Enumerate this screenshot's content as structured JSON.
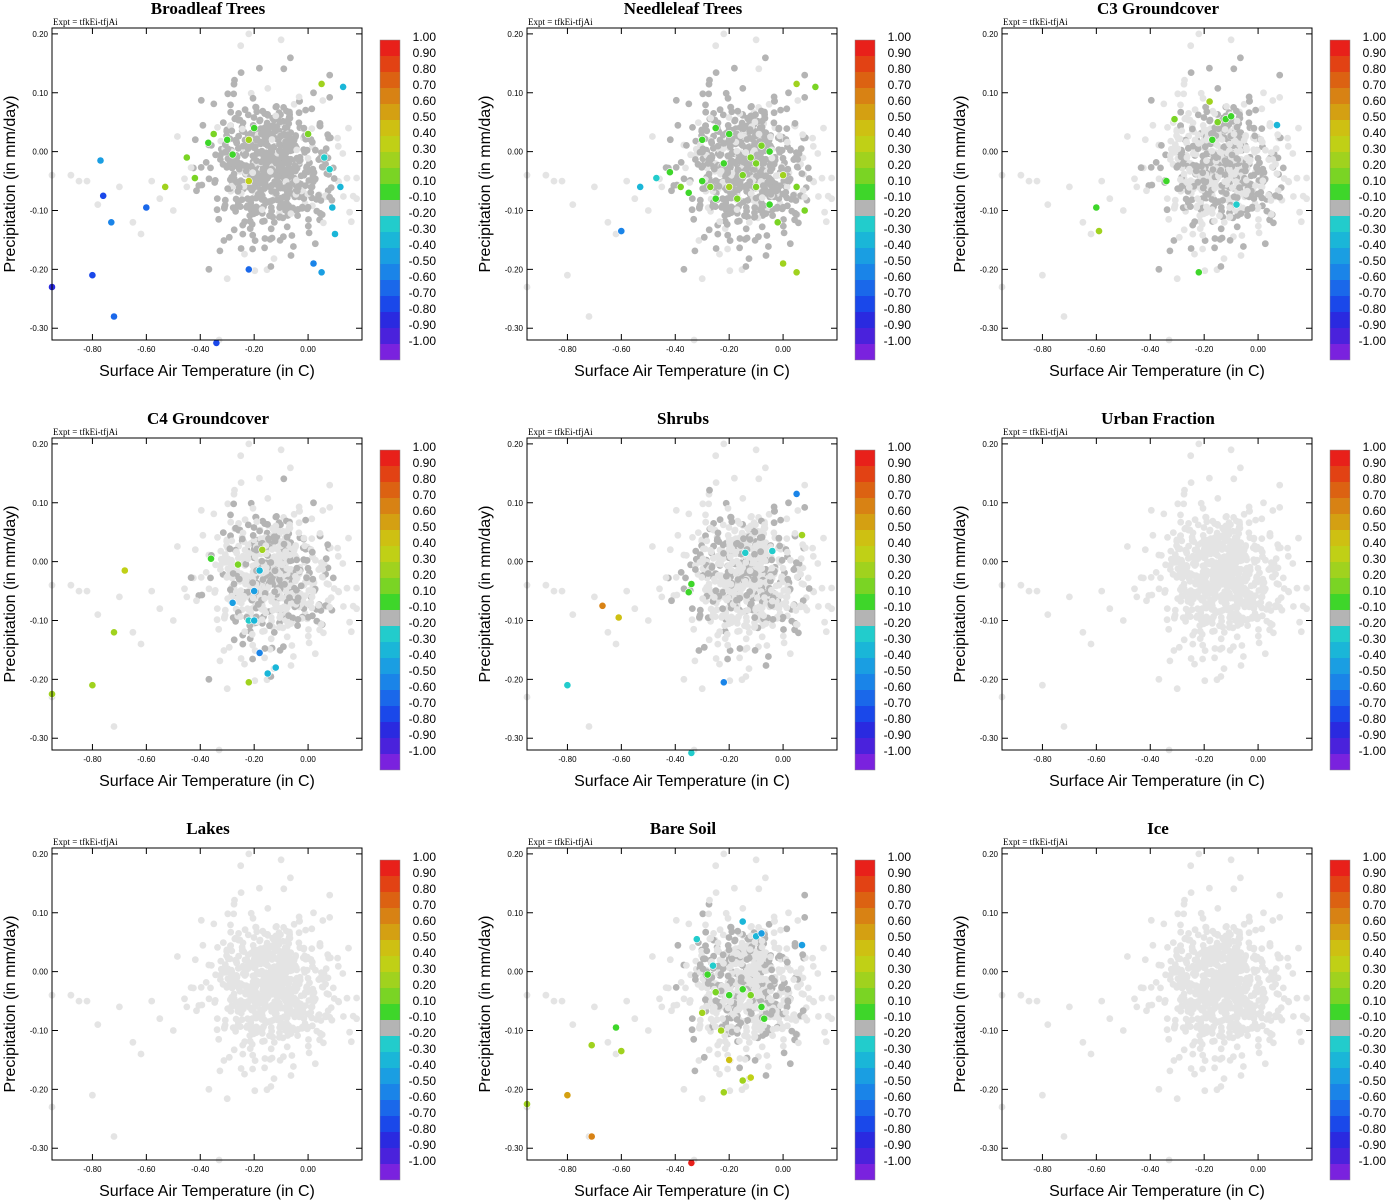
{
  "figure": {
    "expt_label": "Expt = tfkEi-tfjAi",
    "xlabel": "Surface Air Temperature (in C)",
    "ylabel": "Precipitation (in mm/day)"
  },
  "colorbar": {
    "levels": [
      "1.00",
      "0.90",
      "0.80",
      "0.70",
      "0.60",
      "0.50",
      "0.40",
      "0.30",
      "0.20",
      "0.10",
      "-0.10",
      "-0.20",
      "-0.30",
      "-0.40",
      "-0.50",
      "-0.60",
      "-0.70",
      "-0.80",
      "-0.90",
      "-1.00"
    ],
    "colors": [
      "#e8201a",
      "#e24214",
      "#dc6212",
      "#d88214",
      "#d4a012",
      "#cec012",
      "#c0d016",
      "#a0d21e",
      "#7ad424",
      "#3ed62a",
      "#b4b4b4",
      "#22cccc",
      "#1ab6d8",
      "#1a9ee2",
      "#1a84e8",
      "#1a68ea",
      "#1a48ea",
      "#2a2ae0",
      "#4a22dc",
      "#7a22de"
    ]
  },
  "cloud_color": "#e4e4e4",
  "chart_data": [
    {
      "type": "scatter",
      "title": "Broadleaf Trees",
      "xlim": [
        -0.95,
        0.2
      ],
      "ylim": [
        -0.32,
        0.21
      ],
      "xticks": [
        "-0.80",
        "-0.60",
        "-0.40",
        "-0.20",
        "0.00"
      ],
      "xtick_values": [
        -0.8,
        -0.6,
        -0.4,
        -0.2,
        0
      ],
      "yticks": [
        "0.20",
        "0.10",
        "0.00",
        "-0.10",
        "-0.20",
        "-0.30"
      ],
      "ytick_values": [
        0.2,
        0.1,
        0,
        -0.1,
        -0.2,
        -0.3
      ],
      "grey_fraction": 0.9,
      "colored_points": [
        {
          "x": -0.95,
          "y": -0.23,
          "v": -0.8
        },
        {
          "x": -0.8,
          "y": -0.21,
          "v": -0.7
        },
        {
          "x": -0.72,
          "y": -0.28,
          "v": -0.6
        },
        {
          "x": -0.76,
          "y": -0.075,
          "v": -0.7
        },
        {
          "x": -0.73,
          "y": -0.12,
          "v": -0.5
        },
        {
          "x": -0.6,
          "y": -0.095,
          "v": -0.6
        },
        {
          "x": -0.34,
          "y": -0.325,
          "v": -0.7
        },
        {
          "x": -0.77,
          "y": -0.015,
          "v": -0.4
        },
        {
          "x": -0.53,
          "y": -0.06,
          "v": 0.3
        },
        {
          "x": -0.45,
          "y": -0.01,
          "v": 0.2
        },
        {
          "x": -0.42,
          "y": -0.045,
          "v": 0.2
        },
        {
          "x": -0.3,
          "y": 0.02,
          "v": 0.1
        },
        {
          "x": -0.28,
          "y": -0.005,
          "v": 0.1
        },
        {
          "x": -0.22,
          "y": 0.02,
          "v": 0.3
        },
        {
          "x": -0.2,
          "y": 0.04,
          "v": 0.1
        },
        {
          "x": 0.05,
          "y": 0.115,
          "v": 0.3
        },
        {
          "x": 0.13,
          "y": 0.11,
          "v": -0.3
        },
        {
          "x": 0.0,
          "y": 0.03,
          "v": 0.2
        },
        {
          "x": 0.08,
          "y": -0.03,
          "v": -0.2
        },
        {
          "x": 0.12,
          "y": -0.06,
          "v": -0.3
        },
        {
          "x": 0.1,
          "y": -0.14,
          "v": -0.3
        },
        {
          "x": 0.05,
          "y": -0.205,
          "v": -0.4
        },
        {
          "x": 0.02,
          "y": -0.19,
          "v": -0.5
        },
        {
          "x": -0.22,
          "y": -0.2,
          "v": -0.6
        },
        {
          "x": 0.09,
          "y": -0.095,
          "v": -0.3
        },
        {
          "x": -0.35,
          "y": 0.03,
          "v": 0.2
        },
        {
          "x": -0.37,
          "y": 0.015,
          "v": 0.1
        },
        {
          "x": 0.06,
          "y": -0.01,
          "v": -0.2
        },
        {
          "x": -0.22,
          "y": -0.05,
          "v": 0.4
        }
      ]
    },
    {
      "type": "scatter",
      "title": "Needleleaf Trees",
      "xlim": [
        -0.95,
        0.2
      ],
      "ylim": [
        -0.32,
        0.21
      ],
      "xticks": [
        "-0.80",
        "-0.60",
        "-0.40",
        "-0.20",
        "0.00"
      ],
      "xtick_values": [
        -0.8,
        -0.6,
        -0.4,
        -0.2,
        0
      ],
      "yticks": [
        "0.20",
        "0.10",
        "0.00",
        "-0.10",
        "-0.20",
        "-0.30"
      ],
      "ytick_values": [
        0.2,
        0.1,
        0,
        -0.1,
        -0.2,
        -0.3
      ],
      "grey_fraction": 0.8,
      "colored_points": [
        {
          "x": -0.6,
          "y": -0.135,
          "v": -0.5
        },
        {
          "x": -0.53,
          "y": -0.06,
          "v": -0.3
        },
        {
          "x": -0.47,
          "y": -0.045,
          "v": -0.2
        },
        {
          "x": -0.42,
          "y": -0.035,
          "v": 0.1
        },
        {
          "x": -0.38,
          "y": -0.06,
          "v": 0.2
        },
        {
          "x": -0.3,
          "y": -0.05,
          "v": 0.1
        },
        {
          "x": -0.27,
          "y": -0.06,
          "v": 0.2
        },
        {
          "x": -0.25,
          "y": -0.08,
          "v": 0.1
        },
        {
          "x": -0.2,
          "y": -0.06,
          "v": 0.3
        },
        {
          "x": -0.15,
          "y": -0.04,
          "v": 0.2
        },
        {
          "x": -0.1,
          "y": -0.02,
          "v": 0.2
        },
        {
          "x": -0.05,
          "y": 0.0,
          "v": 0.1
        },
        {
          "x": 0.0,
          "y": -0.04,
          "v": 0.3
        },
        {
          "x": 0.05,
          "y": -0.06,
          "v": 0.2
        },
        {
          "x": -0.02,
          "y": -0.12,
          "v": 0.2
        },
        {
          "x": 0.05,
          "y": -0.205,
          "v": 0.3
        },
        {
          "x": 0.0,
          "y": -0.19,
          "v": 0.3
        },
        {
          "x": 0.12,
          "y": 0.11,
          "v": 0.2
        },
        {
          "x": 0.05,
          "y": 0.115,
          "v": 0.3
        },
        {
          "x": -0.25,
          "y": 0.04,
          "v": 0.1
        },
        {
          "x": -0.2,
          "y": 0.03,
          "v": 0.1
        },
        {
          "x": -0.17,
          "y": -0.08,
          "v": 0.2
        },
        {
          "x": -0.12,
          "y": -0.01,
          "v": 0.2
        },
        {
          "x": -0.08,
          "y": 0.01,
          "v": 0.2
        },
        {
          "x": -0.3,
          "y": 0.02,
          "v": 0.1
        },
        {
          "x": -0.22,
          "y": -0.02,
          "v": 0.1
        },
        {
          "x": -0.35,
          "y": -0.07,
          "v": 0.1
        },
        {
          "x": -0.1,
          "y": -0.06,
          "v": 0.2
        },
        {
          "x": 0.08,
          "y": -0.1,
          "v": 0.2
        },
        {
          "x": -0.05,
          "y": -0.09,
          "v": 0.1
        }
      ]
    },
    {
      "type": "scatter",
      "title": "C3 Groundcover",
      "xlim": [
        -0.95,
        0.2
      ],
      "ylim": [
        -0.32,
        0.21
      ],
      "xticks": [
        "-0.80",
        "-0.60",
        "-0.40",
        "-0.20",
        "0.00"
      ],
      "xtick_values": [
        -0.8,
        -0.6,
        -0.4,
        -0.2,
        0
      ],
      "yticks": [
        "0.20",
        "0.10",
        "0.00",
        "-0.10",
        "-0.20",
        "-0.30"
      ],
      "ytick_values": [
        0.2,
        0.1,
        0,
        -0.1,
        -0.2,
        -0.3
      ],
      "grey_fraction": 0.5,
      "colored_points": [
        {
          "x": -0.6,
          "y": -0.095,
          "v": 0.1
        },
        {
          "x": -0.59,
          "y": -0.135,
          "v": 0.3
        },
        {
          "x": -0.34,
          "y": -0.05,
          "v": 0.1
        },
        {
          "x": -0.31,
          "y": 0.055,
          "v": 0.2
        },
        {
          "x": -0.22,
          "y": -0.205,
          "v": 0.1
        },
        {
          "x": -0.18,
          "y": 0.085,
          "v": 0.3
        },
        {
          "x": -0.17,
          "y": 0.02,
          "v": 0.1
        },
        {
          "x": -0.15,
          "y": 0.05,
          "v": 0.2
        },
        {
          "x": -0.12,
          "y": 0.055,
          "v": 0.1
        },
        {
          "x": -0.1,
          "y": 0.06,
          "v": 0.1
        },
        {
          "x": 0.07,
          "y": 0.045,
          "v": -0.3
        },
        {
          "x": -0.08,
          "y": -0.09,
          "v": -0.2
        }
      ]
    },
    {
      "type": "scatter",
      "title": "C4 Groundcover",
      "xlim": [
        -0.95,
        0.2
      ],
      "ylim": [
        -0.32,
        0.21
      ],
      "xticks": [
        "-0.80",
        "-0.60",
        "-0.40",
        "-0.20",
        "0.00"
      ],
      "xtick_values": [
        -0.8,
        -0.6,
        -0.4,
        -0.2,
        0
      ],
      "yticks": [
        "0.20",
        "0.10",
        "0.00",
        "-0.10",
        "-0.20",
        "-0.30"
      ],
      "ytick_values": [
        0.2,
        0.1,
        0,
        -0.1,
        -0.2,
        -0.3
      ],
      "grey_fraction": 0.35,
      "colored_points": [
        {
          "x": -0.95,
          "y": -0.225,
          "v": 0.3
        },
        {
          "x": -0.8,
          "y": -0.21,
          "v": 0.3
        },
        {
          "x": -0.72,
          "y": -0.12,
          "v": 0.3
        },
        {
          "x": -0.68,
          "y": -0.015,
          "v": 0.4
        },
        {
          "x": -0.36,
          "y": 0.005,
          "v": 0.1
        },
        {
          "x": -0.28,
          "y": -0.07,
          "v": -0.4
        },
        {
          "x": -0.26,
          "y": -0.005,
          "v": 0.2
        },
        {
          "x": -0.22,
          "y": -0.1,
          "v": -0.2
        },
        {
          "x": -0.2,
          "y": -0.1,
          "v": -0.3
        },
        {
          "x": -0.18,
          "y": -0.015,
          "v": -0.3
        },
        {
          "x": -0.15,
          "y": -0.19,
          "v": -0.3
        },
        {
          "x": -0.12,
          "y": -0.18,
          "v": -0.3
        },
        {
          "x": -0.18,
          "y": -0.155,
          "v": -0.5
        },
        {
          "x": -0.22,
          "y": -0.205,
          "v": 0.3
        },
        {
          "x": -0.17,
          "y": 0.02,
          "v": 0.3
        },
        {
          "x": -0.2,
          "y": -0.05,
          "v": -0.4
        }
      ]
    },
    {
      "type": "scatter",
      "title": "Shrubs",
      "xlim": [
        -0.95,
        0.2
      ],
      "ylim": [
        -0.32,
        0.21
      ],
      "xticks": [
        "-0.80",
        "-0.60",
        "-0.40",
        "-0.20",
        "0.00"
      ],
      "xtick_values": [
        -0.8,
        -0.6,
        -0.4,
        -0.2,
        0
      ],
      "yticks": [
        "0.20",
        "0.10",
        "0.00",
        "-0.10",
        "-0.20",
        "-0.30"
      ],
      "ytick_values": [
        0.2,
        0.1,
        0,
        -0.1,
        -0.2,
        -0.3
      ],
      "grey_fraction": 0.3,
      "colored_points": [
        {
          "x": -0.8,
          "y": -0.21,
          "v": -0.2
        },
        {
          "x": -0.67,
          "y": -0.075,
          "v": 0.7
        },
        {
          "x": -0.61,
          "y": -0.095,
          "v": 0.5
        },
        {
          "x": -0.34,
          "y": -0.038,
          "v": 0.1
        },
        {
          "x": -0.35,
          "y": -0.052,
          "v": 0.1
        },
        {
          "x": -0.34,
          "y": -0.325,
          "v": -0.2
        },
        {
          "x": -0.22,
          "y": -0.205,
          "v": -0.5
        },
        {
          "x": -0.14,
          "y": 0.015,
          "v": -0.2
        },
        {
          "x": -0.04,
          "y": 0.018,
          "v": -0.2
        },
        {
          "x": 0.05,
          "y": 0.115,
          "v": -0.5
        },
        {
          "x": 0.07,
          "y": 0.045,
          "v": 0.3
        }
      ]
    },
    {
      "type": "scatter",
      "title": "Urban Fraction",
      "xlim": [
        -0.95,
        0.2
      ],
      "ylim": [
        -0.32,
        0.21
      ],
      "xticks": [
        "-0.80",
        "-0.60",
        "-0.40",
        "-0.20",
        "0.00"
      ],
      "xtick_values": [
        -0.8,
        -0.6,
        -0.4,
        -0.2,
        0
      ],
      "yticks": [
        "0.20",
        "0.10",
        "0.00",
        "-0.10",
        "-0.20",
        "-0.30"
      ],
      "ytick_values": [
        0.2,
        0.1,
        0,
        -0.1,
        -0.2,
        -0.3
      ],
      "grey_fraction": 0.0,
      "colored_points": []
    },
    {
      "type": "scatter",
      "title": "Lakes",
      "xlim": [
        -0.95,
        0.2
      ],
      "ylim": [
        -0.32,
        0.21
      ],
      "xticks": [
        "-0.80",
        "-0.60",
        "-0.40",
        "-0.20",
        "0.00"
      ],
      "xtick_values": [
        -0.8,
        -0.6,
        -0.4,
        -0.2,
        0
      ],
      "yticks": [
        "0.20",
        "0.10",
        "0.00",
        "-0.10",
        "-0.20",
        "-0.30"
      ],
      "ytick_values": [
        0.2,
        0.1,
        0,
        -0.1,
        -0.2,
        -0.3
      ],
      "grey_fraction": 0.0,
      "colored_points": []
    },
    {
      "type": "scatter",
      "title": "Bare Soil",
      "xlim": [
        -0.95,
        0.2
      ],
      "ylim": [
        -0.32,
        0.21
      ],
      "xticks": [
        "-0.80",
        "-0.60",
        "-0.40",
        "-0.20",
        "0.00"
      ],
      "xtick_values": [
        -0.8,
        -0.6,
        -0.4,
        -0.2,
        0
      ],
      "yticks": [
        "0.20",
        "0.10",
        "0.00",
        "-0.10",
        "-0.20",
        "-0.30"
      ],
      "ytick_values": [
        0.2,
        0.1,
        0,
        -0.1,
        -0.2,
        -0.3
      ],
      "grey_fraction": 0.3,
      "colored_points": [
        {
          "x": -0.95,
          "y": -0.225,
          "v": 0.3
        },
        {
          "x": -0.8,
          "y": -0.21,
          "v": 0.6
        },
        {
          "x": -0.71,
          "y": -0.28,
          "v": 0.7
        },
        {
          "x": -0.34,
          "y": -0.325,
          "v": 1.0
        },
        {
          "x": -0.71,
          "y": -0.125,
          "v": 0.3
        },
        {
          "x": -0.62,
          "y": -0.095,
          "v": 0.1
        },
        {
          "x": -0.6,
          "y": -0.135,
          "v": 0.3
        },
        {
          "x": -0.3,
          "y": -0.07,
          "v": 0.3
        },
        {
          "x": -0.25,
          "y": -0.035,
          "v": 0.2
        },
        {
          "x": -0.23,
          "y": -0.1,
          "v": 0.3
        },
        {
          "x": -0.2,
          "y": -0.15,
          "v": 0.5
        },
        {
          "x": -0.22,
          "y": -0.205,
          "v": 0.3
        },
        {
          "x": -0.15,
          "y": -0.185,
          "v": 0.3
        },
        {
          "x": -0.12,
          "y": -0.18,
          "v": 0.4
        },
        {
          "x": -0.2,
          "y": -0.04,
          "v": 0.1
        },
        {
          "x": -0.15,
          "y": -0.03,
          "v": 0.1
        },
        {
          "x": -0.12,
          "y": -0.04,
          "v": 0.2
        },
        {
          "x": -0.08,
          "y": -0.06,
          "v": 0.1
        },
        {
          "x": -0.07,
          "y": -0.08,
          "v": 0.1
        },
        {
          "x": -0.15,
          "y": 0.085,
          "v": -0.3
        },
        {
          "x": -0.1,
          "y": 0.06,
          "v": -0.3
        },
        {
          "x": -0.08,
          "y": 0.065,
          "v": -0.4
        },
        {
          "x": 0.07,
          "y": 0.045,
          "v": -0.4
        },
        {
          "x": -0.32,
          "y": 0.055,
          "v": -0.2
        },
        {
          "x": -0.26,
          "y": 0.01,
          "v": -0.2
        },
        {
          "x": -0.28,
          "y": -0.005,
          "v": 0.1
        }
      ]
    },
    {
      "type": "scatter",
      "title": "Ice",
      "xlim": [
        -0.95,
        0.2
      ],
      "ylim": [
        -0.32,
        0.21
      ],
      "xticks": [
        "-0.80",
        "-0.60",
        "-0.40",
        "-0.20",
        "0.00"
      ],
      "xtick_values": [
        -0.8,
        -0.6,
        -0.4,
        -0.2,
        0
      ],
      "yticks": [
        "0.20",
        "0.10",
        "0.00",
        "-0.10",
        "-0.20",
        "-0.30"
      ],
      "ytick_values": [
        0.2,
        0.1,
        0,
        -0.1,
        -0.2,
        -0.3
      ],
      "grey_fraction": 0.0,
      "colored_points": []
    }
  ]
}
